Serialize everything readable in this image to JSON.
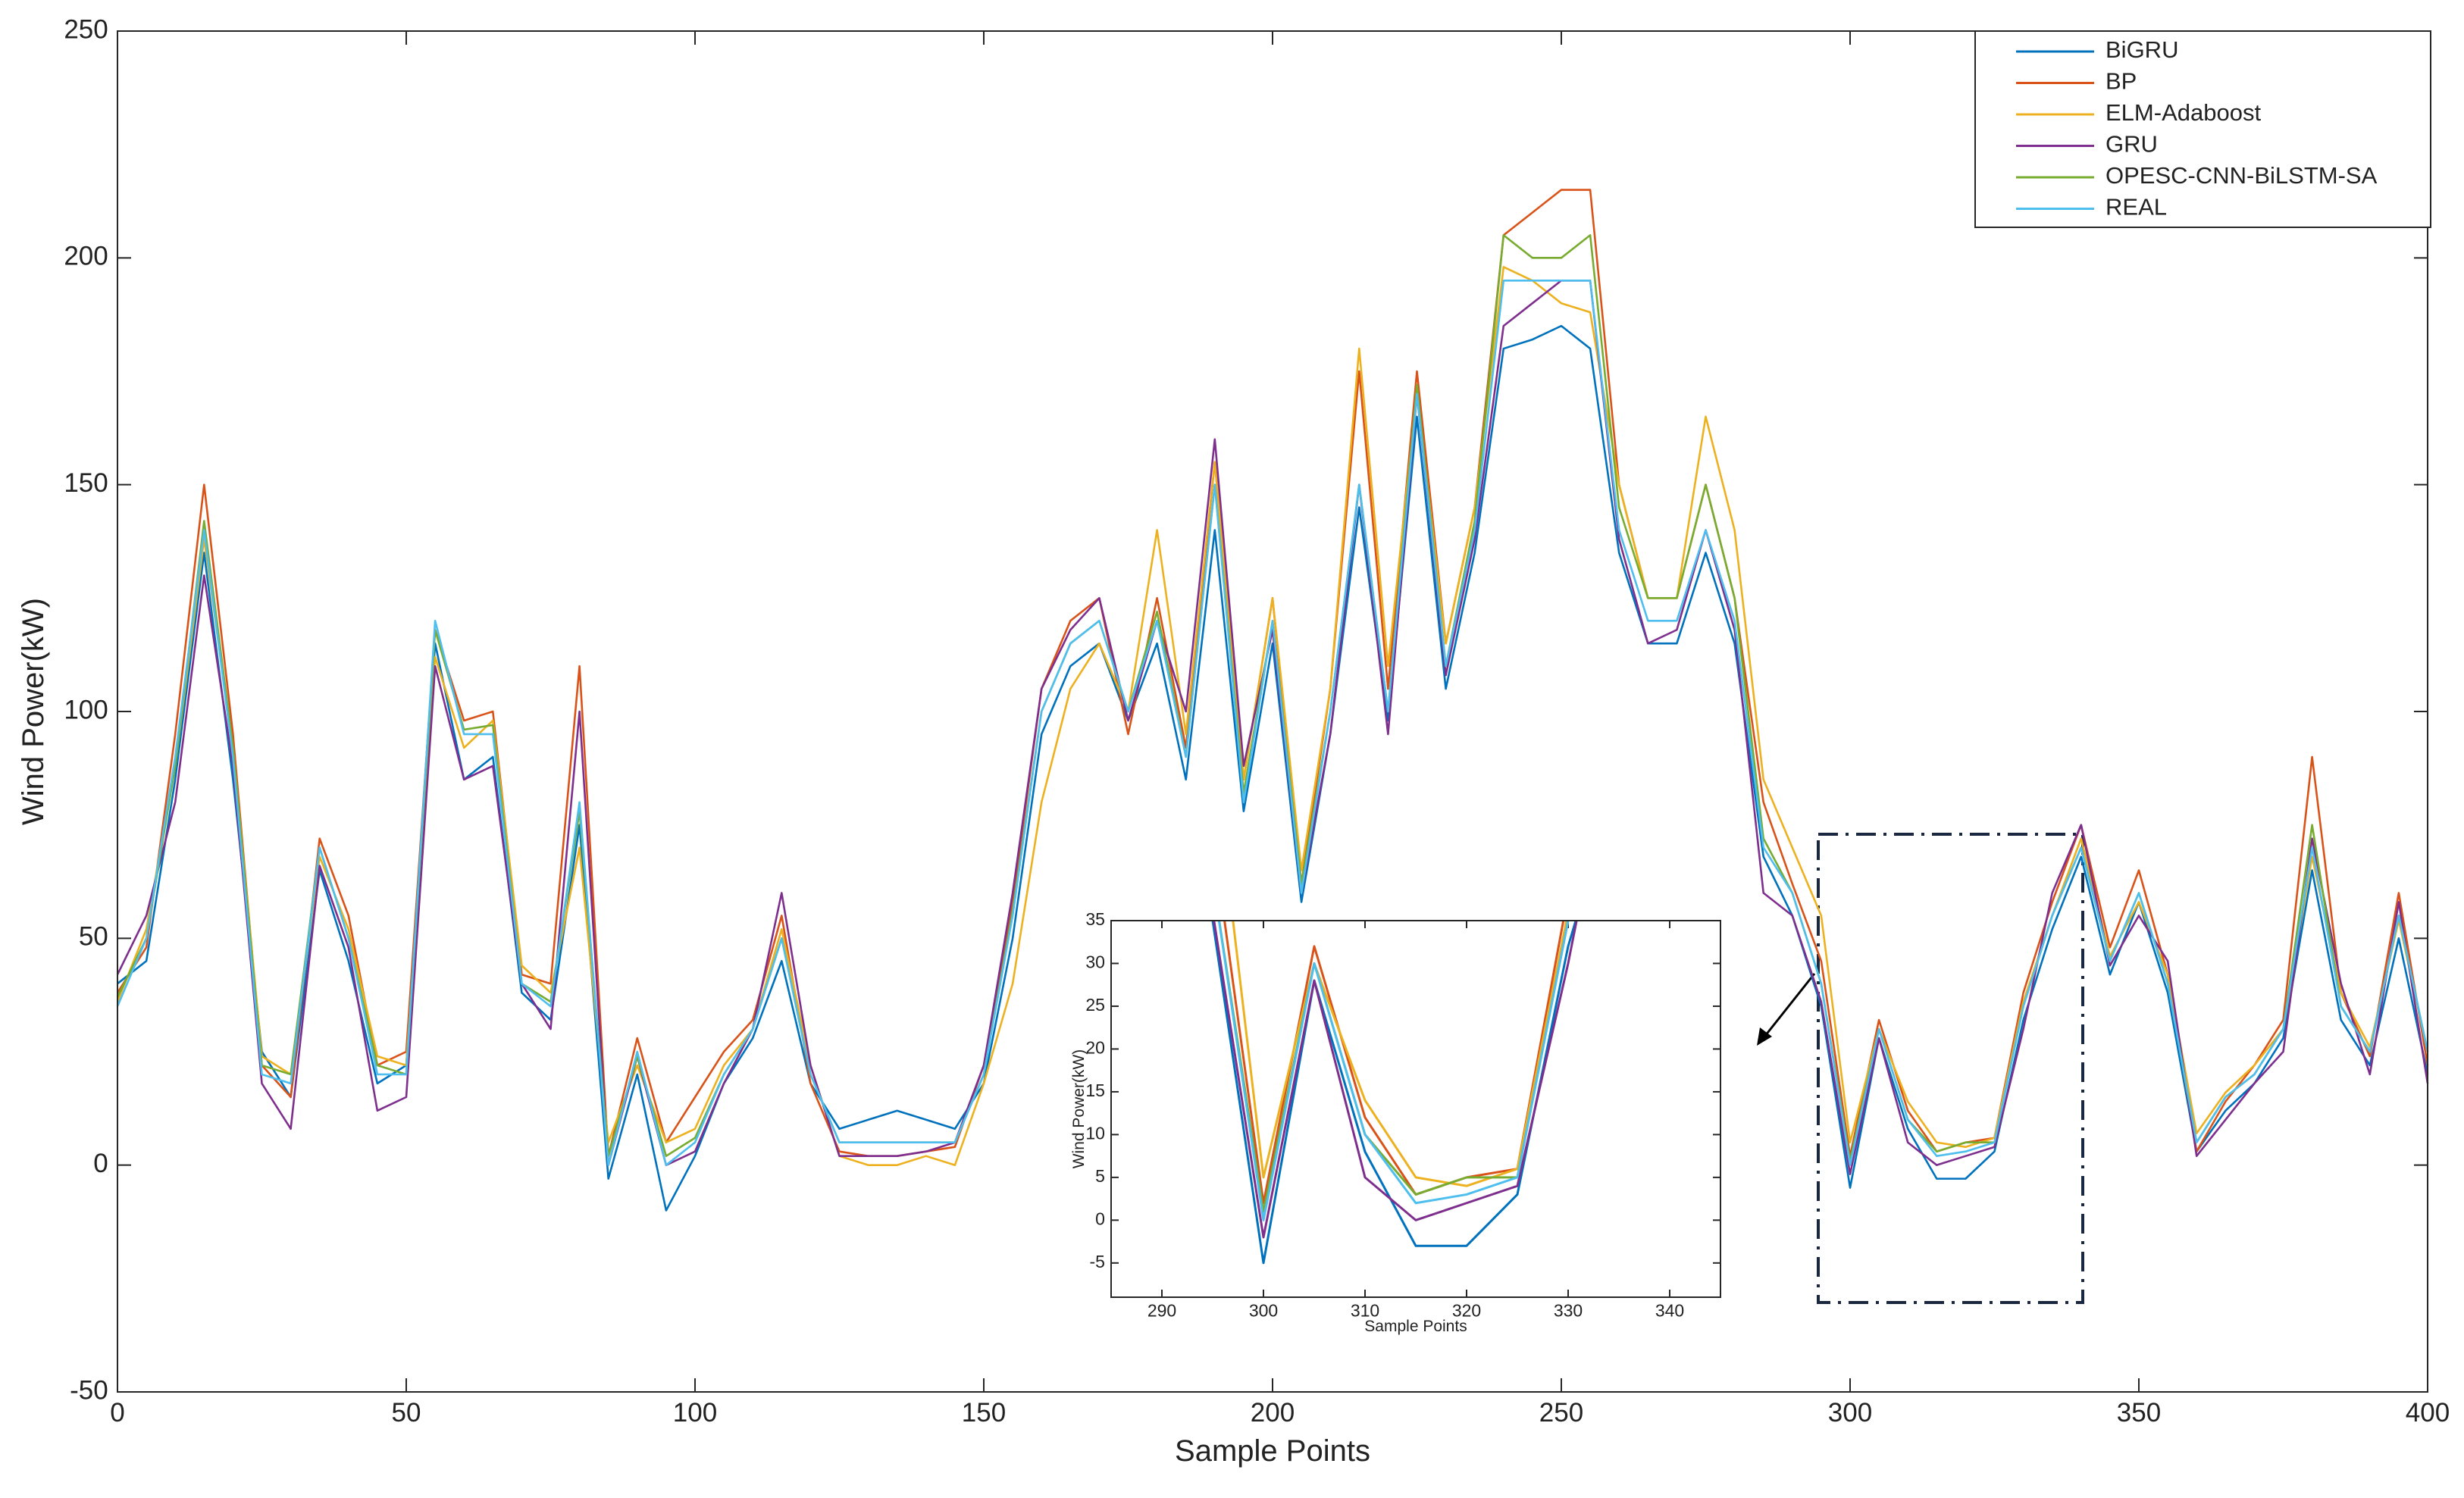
{
  "chart_data": [
    {
      "type": "line",
      "xlabel": "Sample Points",
      "ylabel": "Wind Power(kW)",
      "xlim": [
        0,
        400
      ],
      "ylim": [
        -50,
        250
      ],
      "xticks": [
        0,
        50,
        100,
        150,
        200,
        250,
        300,
        350,
        400
      ],
      "yticks": [
        -50,
        0,
        50,
        100,
        150,
        200,
        250
      ],
      "legend": "upper right",
      "grid": false,
      "x": [
        0,
        5,
        10,
        15,
        20,
        25,
        30,
        35,
        40,
        45,
        50,
        55,
        60,
        65,
        70,
        75,
        80,
        85,
        90,
        95,
        100,
        105,
        110,
        115,
        120,
        125,
        130,
        135,
        140,
        145,
        150,
        155,
        160,
        165,
        170,
        175,
        180,
        185,
        190,
        195,
        200,
        205,
        210,
        215,
        220,
        225,
        230,
        235,
        240,
        245,
        250,
        255,
        260,
        265,
        270,
        275,
        280,
        285,
        290,
        295,
        300,
        305,
        310,
        315,
        320,
        325,
        330,
        335,
        340,
        345,
        350,
        355,
        360,
        365,
        370,
        375,
        380,
        385,
        390,
        395,
        400
      ],
      "series": [
        {
          "name": "BiGRU",
          "color": "#0072BD",
          "values": [
            40,
            45,
            85,
            135,
            85,
            25,
            15,
            65,
            45,
            18,
            22,
            115,
            85,
            90,
            38,
            32,
            75,
            -3,
            20,
            -10,
            2,
            18,
            28,
            45,
            18,
            8,
            10,
            12,
            10,
            8,
            18,
            50,
            95,
            110,
            115,
            98,
            115,
            85,
            140,
            78,
            115,
            58,
            95,
            145,
            98,
            165,
            105,
            135,
            180,
            182,
            185,
            180,
            135,
            115,
            115,
            135,
            115,
            68,
            55,
            35,
            -5,
            28,
            8,
            -3,
            -3,
            3,
            32,
            52,
            68,
            42,
            58,
            38,
            3,
            12,
            18,
            28,
            65,
            32,
            22,
            50,
            20
          ]
        },
        {
          "name": "BP",
          "color": "#D95319",
          "values": [
            38,
            48,
            95,
            150,
            95,
            22,
            15,
            72,
            55,
            22,
            25,
            118,
            98,
            100,
            42,
            40,
            110,
            2,
            28,
            5,
            15,
            25,
            32,
            55,
            18,
            3,
            2,
            2,
            3,
            4,
            22,
            58,
            105,
            120,
            125,
            95,
            125,
            92,
            155,
            85,
            125,
            62,
            105,
            175,
            105,
            175,
            115,
            145,
            205,
            210,
            215,
            215,
            150,
            125,
            125,
            150,
            125,
            80,
            62,
            45,
            2,
            32,
            12,
            3,
            5,
            6,
            38,
            58,
            75,
            48,
            65,
            42,
            3,
            14,
            22,
            32,
            90,
            38,
            24,
            60,
            22
          ]
        },
        {
          "name": "ELM-Adaboost",
          "color": "#EDB120",
          "values": [
            36,
            52,
            88,
            138,
            92,
            24,
            20,
            68,
            52,
            24,
            22,
            112,
            92,
            98,
            44,
            38,
            70,
            5,
            22,
            5,
            8,
            22,
            30,
            52,
            22,
            2,
            0,
            0,
            2,
            0,
            18,
            40,
            80,
            105,
            115,
            100,
            140,
            95,
            155,
            85,
            125,
            65,
            105,
            180,
            110,
            170,
            115,
            145,
            198,
            195,
            190,
            188,
            150,
            125,
            125,
            165,
            140,
            85,
            70,
            55,
            5,
            30,
            14,
            5,
            4,
            6,
            36,
            55,
            72,
            46,
            58,
            42,
            7,
            16,
            22,
            30,
            68,
            38,
            26,
            54,
            25
          ]
        },
        {
          "name": "GRU",
          "color": "#7E2F8E",
          "values": [
            42,
            55,
            80,
            130,
            88,
            18,
            8,
            66,
            48,
            12,
            15,
            110,
            85,
            88,
            40,
            30,
            100,
            0,
            24,
            0,
            3,
            18,
            30,
            60,
            22,
            2,
            2,
            2,
            3,
            5,
            22,
            60,
            105,
            118,
            125,
            98,
            120,
            100,
            160,
            88,
            118,
            60,
            95,
            150,
            95,
            170,
            108,
            138,
            185,
            190,
            195,
            195,
            138,
            115,
            118,
            140,
            118,
            60,
            55,
            36,
            -2,
            28,
            5,
            0,
            2,
            4,
            30,
            60,
            75,
            44,
            55,
            45,
            2,
            10,
            18,
            25,
            72,
            40,
            20,
            58,
            18
          ]
        },
        {
          "name": "OPESC-CNN-BiLSTM-SA",
          "color": "#77AC30",
          "values": [
            37,
            50,
            88,
            142,
            92,
            22,
            20,
            70,
            50,
            22,
            20,
            118,
            96,
            97,
            40,
            36,
            78,
            2,
            24,
            2,
            6,
            20,
            30,
            50,
            20,
            5,
            5,
            5,
            5,
            5,
            20,
            56,
            100,
            115,
            120,
            100,
            122,
            90,
            150,
            82,
            120,
            62,
            100,
            150,
            100,
            172,
            110,
            142,
            205,
            200,
            200,
            205,
            145,
            125,
            125,
            150,
            125,
            72,
            60,
            40,
            1,
            30,
            10,
            3,
            5,
            5,
            35,
            55,
            70,
            45,
            60,
            40,
            5,
            15,
            20,
            30,
            75,
            35,
            25,
            55,
            25
          ]
        },
        {
          "name": "REAL",
          "color": "#4DBEEE",
          "values": [
            35,
            50,
            90,
            140,
            90,
            20,
            18,
            70,
            50,
            20,
            20,
            120,
            95,
            95,
            40,
            35,
            80,
            0,
            25,
            0,
            5,
            20,
            30,
            50,
            20,
            5,
            5,
            5,
            5,
            5,
            20,
            55,
            100,
            115,
            120,
            100,
            120,
            90,
            150,
            80,
            120,
            60,
            100,
            150,
            100,
            170,
            110,
            140,
            195,
            195,
            195,
            195,
            140,
            120,
            120,
            140,
            120,
            70,
            60,
            40,
            0,
            30,
            10,
            2,
            3,
            5,
            35,
            55,
            70,
            45,
            60,
            40,
            5,
            15,
            20,
            30,
            70,
            35,
            25,
            55,
            25
          ]
        }
      ]
    },
    {
      "type": "line",
      "xlabel": "Sample Points",
      "ylabel": "Wind Power(kW)",
      "xlim": [
        285,
        345
      ],
      "ylim": [
        -9,
        35
      ],
      "xticks": [
        290,
        300,
        310,
        320,
        330,
        340
      ],
      "yticks": [
        -5,
        0,
        5,
        10,
        15,
        20,
        25,
        30,
        35
      ]
    }
  ]
}
